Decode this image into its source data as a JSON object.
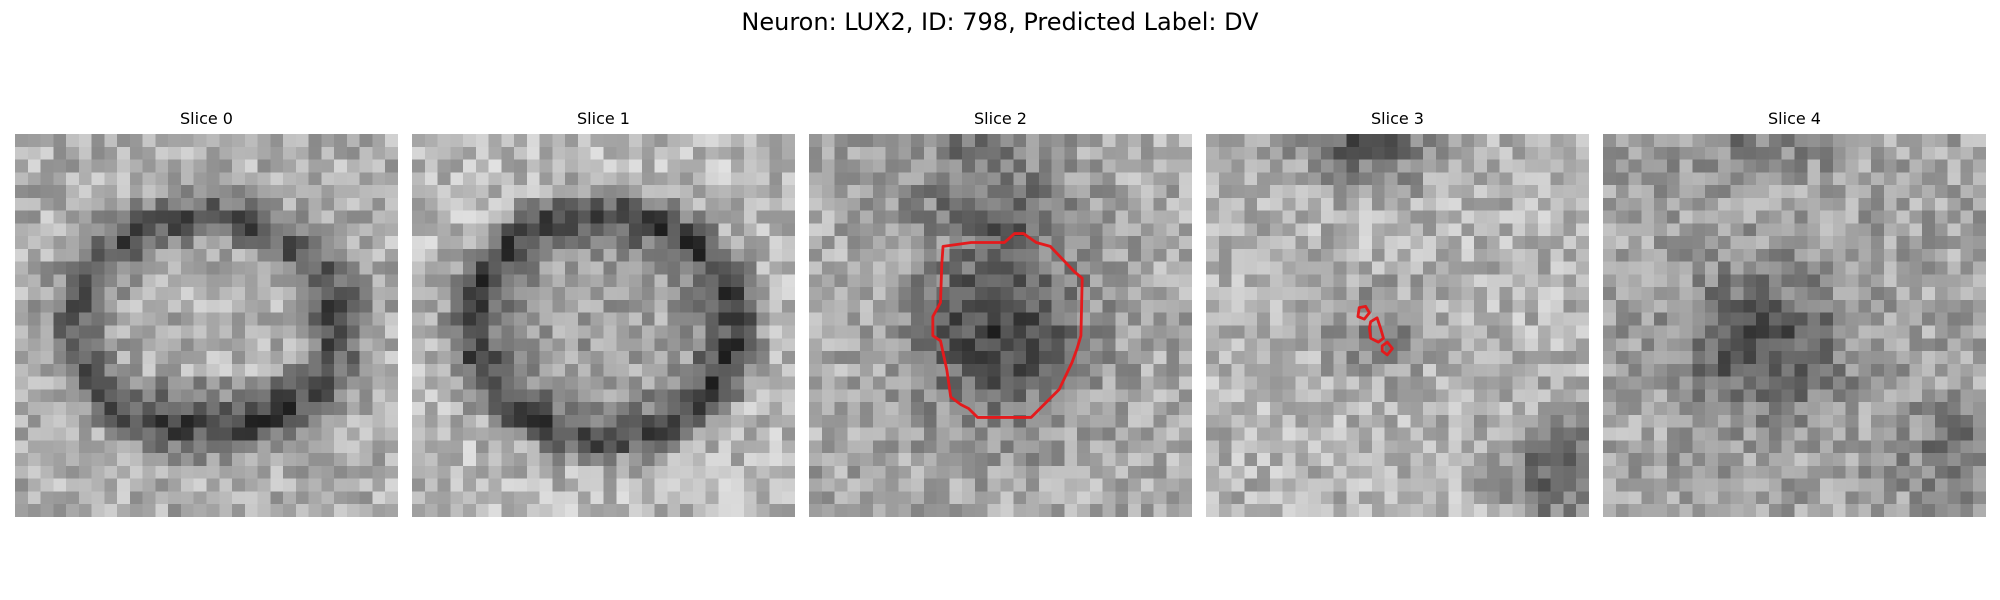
{
  "figure": {
    "title": "Neuron: LUX2, ID: 798, Predicted Label: DV"
  },
  "panels": [
    {
      "title": "Slice 0",
      "pattern": "dark-ring",
      "contour": false,
      "seed": 11
    },
    {
      "title": "Slice 1",
      "pattern": "dark-ring-strong",
      "contour": false,
      "seed": 23
    },
    {
      "title": "Slice 2",
      "pattern": "dark-blob",
      "contour": true,
      "seed": 37
    },
    {
      "title": "Slice 3",
      "pattern": "light-noisy",
      "contour": true,
      "seed": 53
    },
    {
      "title": "Slice 4",
      "pattern": "dark-blob-soft",
      "contour": false,
      "seed": 71
    }
  ],
  "colors": {
    "contour": "#e41a1c",
    "colormap": "grayscale"
  }
}
